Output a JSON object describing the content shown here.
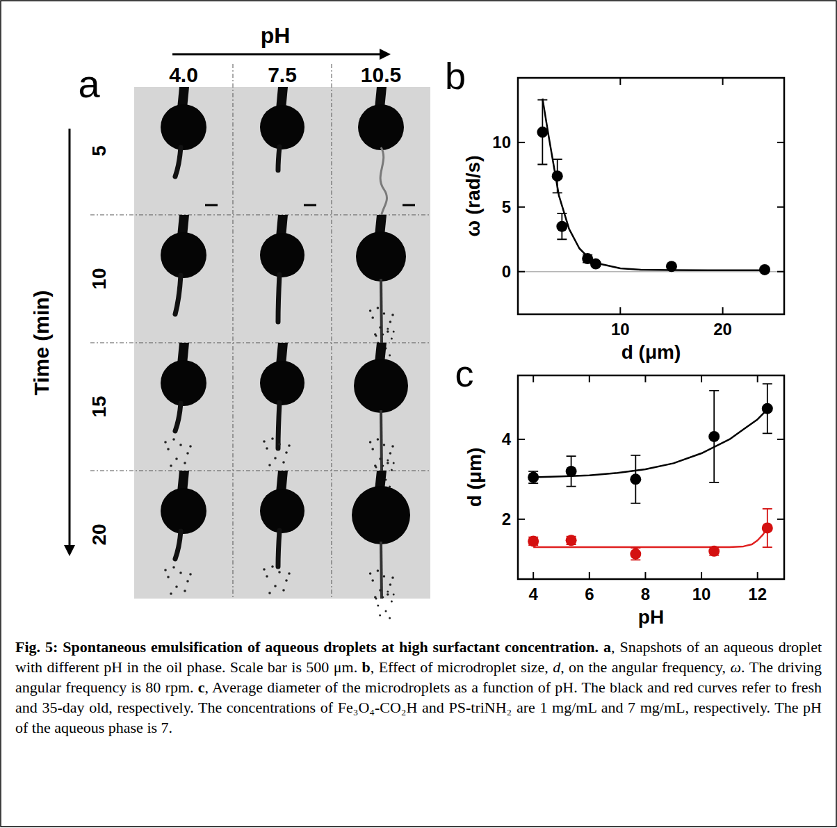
{
  "chart_data": [
    {
      "type": "scatter",
      "letter": "b",
      "x_label": "d (μm)",
      "y_label": "ω (rad/s)",
      "xlim": [
        0,
        26
      ],
      "ylim": [
        -3.3,
        15
      ],
      "xticks": [
        10,
        20
      ],
      "yticks": [
        0,
        5,
        10
      ],
      "hlines": [
        {
          "value": 0,
          "color": "#b4b4b4"
        }
      ],
      "series": [
        {
          "type": "scatter",
          "color": "#000000",
          "marker": "circle",
          "x": [
            2.4,
            3.85,
            4.3,
            6.8,
            7.6,
            15.0,
            24.1
          ],
          "values": [
            10.8,
            7.4,
            3.5,
            1.0,
            0.6,
            0.4,
            0.15
          ],
          "errors": [
            2.5,
            1.3,
            1.0,
            0.3,
            0.15,
            0.1,
            0.08
          ]
        },
        {
          "type": "line",
          "color": "#000000",
          "line_style": "solid",
          "x": [
            2.4,
            3,
            4,
            5,
            6,
            7,
            8,
            10,
            12,
            15,
            20,
            24.3
          ],
          "values": [
            13.4,
            10.5,
            5.9,
            3.3,
            1.8,
            1.0,
            0.6,
            0.25,
            0.15,
            0.12,
            0.1,
            0.1
          ]
        }
      ]
    },
    {
      "type": "scatter",
      "letter": "c",
      "x_label": "pH",
      "y_label": "d (μm)",
      "xlim": [
        3.45,
        12.95
      ],
      "ylim": [
        0.5,
        5.6
      ],
      "xticks": [
        4,
        6,
        8,
        10,
        12
      ],
      "yticks": [
        2,
        4
      ],
      "series": [
        {
          "type": "scatter",
          "color": "#000000",
          "marker": "circle",
          "x": [
            4.0,
            5.35,
            7.65,
            10.45,
            12.35
          ],
          "values": [
            3.05,
            3.2,
            3.0,
            4.07,
            4.77
          ],
          "errors": [
            0.15,
            0.38,
            0.6,
            1.15,
            0.62
          ]
        },
        {
          "type": "scatter",
          "color": "#d41010",
          "marker": "circle",
          "x": [
            4.0,
            5.35,
            7.65,
            10.45,
            12.35
          ],
          "values": [
            1.45,
            1.47,
            1.13,
            1.2,
            1.78
          ],
          "errors": [
            0.1,
            0.1,
            0.15,
            0.1,
            0.48
          ]
        },
        {
          "type": "line",
          "color": "#000000",
          "line_style": "solid",
          "x": [
            4.0,
            5,
            6,
            7,
            8,
            9,
            10,
            11,
            11.5,
            12,
            12.35
          ],
          "values": [
            3.05,
            3.07,
            3.1,
            3.16,
            3.25,
            3.4,
            3.65,
            4.0,
            4.25,
            4.5,
            4.75
          ]
        },
        {
          "type": "line",
          "color": "#e02020",
          "line_style": "solid",
          "x": [
            4.0,
            6,
            8,
            10,
            11,
            11.5,
            11.8,
            12.0,
            12.2,
            12.35
          ],
          "values": [
            1.3,
            1.3,
            1.3,
            1.3,
            1.3,
            1.32,
            1.37,
            1.47,
            1.62,
            1.8
          ]
        }
      ]
    }
  ],
  "panel_a": {
    "letter": "a",
    "x_header": "pH",
    "columns": [
      "4.0",
      "7.5",
      "10.5"
    ],
    "y_header": "Time (min)",
    "rows": [
      "5",
      "10",
      "15",
      "20"
    ]
  },
  "caption": {
    "segments": [
      {
        "text": "Fig. 5: Spontaneous emulsification of aqueous droplets at high surfactant concentration. ",
        "style": "bold"
      },
      {
        "text": "a",
        "style": "bold"
      },
      {
        "text": ", Snapshots of an aqueous droplet with different pH in the oil phase. Scale bar is 500 μm. ",
        "style": "normal"
      },
      {
        "text": "b",
        "style": "bold"
      },
      {
        "text": ", Effect of microdroplet size, ",
        "style": "normal"
      },
      {
        "text": "d",
        "style": "italic"
      },
      {
        "text": ", on the angular frequency, ",
        "style": "normal"
      },
      {
        "text": "ω",
        "style": "italic"
      },
      {
        "text": ". The driving angular frequency is 80 rpm. ",
        "style": "normal"
      },
      {
        "text": "c",
        "style": "bold"
      },
      {
        "text": ", Average diameter of the microdroplets as a function of pH. The black and red curves refer to fresh and 35-day old, respectively. The concentrations of Fe₃O₄-CO₂H and PS-triNH₂ are 1 mg/mL and 7 mg/mL, respectively.  The pH of the aqueous phase is 7.",
        "style": "normal"
      }
    ]
  }
}
